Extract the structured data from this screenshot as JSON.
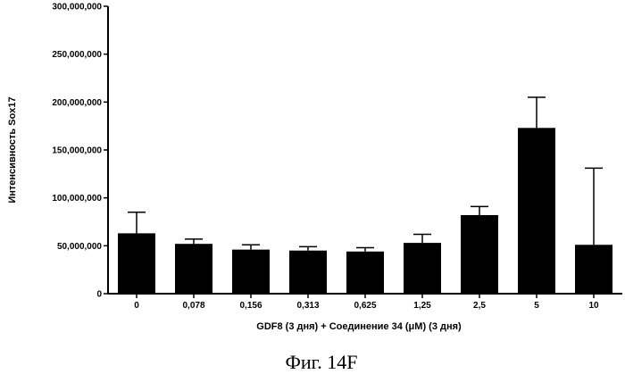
{
  "chart_data": {
    "type": "bar",
    "categories": [
      "0",
      "0,078",
      "0,156",
      "0,313",
      "0,625",
      "1,25",
      "2,5",
      "5",
      "10"
    ],
    "values": [
      63000000,
      52000000,
      46000000,
      45000000,
      44000000,
      53000000,
      82000000,
      173000000,
      51000000
    ],
    "error_upper": [
      85000000,
      57000000,
      51000000,
      49000000,
      48000000,
      62000000,
      91000000,
      205000000,
      131000000
    ],
    "yticks": [
      "0",
      "50,000,000",
      "100,000,000",
      "150,000,000",
      "200,000,000",
      "250,000,000",
      "300,000,000"
    ],
    "ytick_values": [
      0,
      50000000,
      100000000,
      150000000,
      200000000,
      250000000,
      300000000
    ],
    "ylim": [
      0,
      300000000
    ],
    "ylabel": "Интенсивность Sox17",
    "xlabel": "GDF8 (3 дня) + Соединение 34 (μM) (3 дня)",
    "caption": "Фиг. 14F",
    "bar_color": "#000000"
  }
}
